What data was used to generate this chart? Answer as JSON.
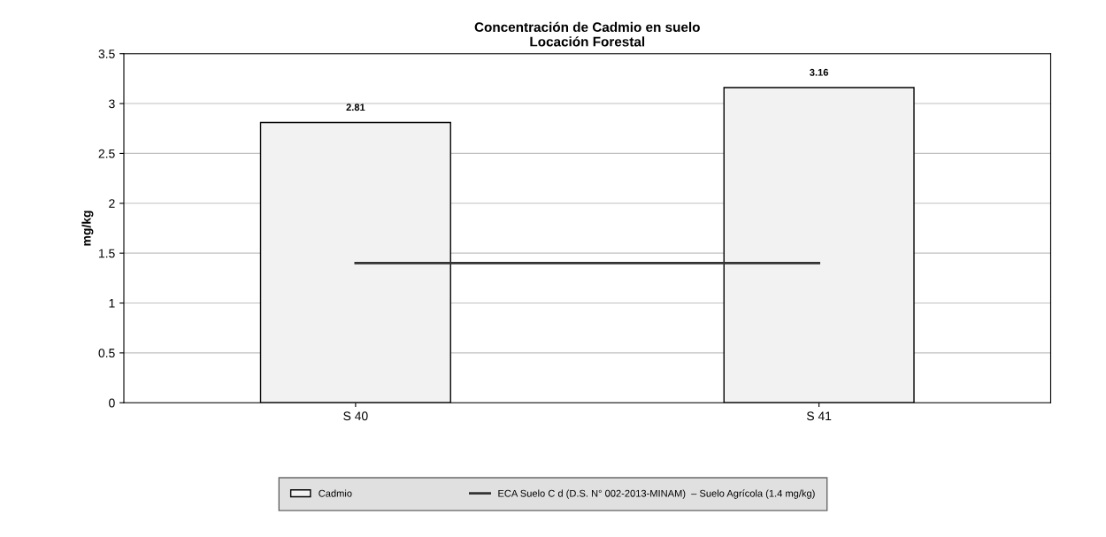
{
  "chart_data": {
    "type": "bar",
    "title": "Concentración de Cadmio en suelo\nLocación Forestal",
    "ylabel": "mg/kg",
    "categories": [
      "S 40",
      "S 41"
    ],
    "series": [
      {
        "name": "Cadmio",
        "color": "#f2f2f2",
        "values": [
          2.81,
          3.16
        ],
        "value_labels": [
          "2.81",
          "3.16"
        ]
      },
      {
        "name": "ECA Suelo C d (D.S. N° 002-2013-MINAM)  – Suelo Agrícola (1.4 mg/kg)",
        "type": "line",
        "color": "#333333",
        "values": [
          1.4,
          1.4
        ]
      }
    ],
    "ylim": [
      0,
      3.5
    ],
    "yticks": [
      0,
      0.5,
      1,
      1.5,
      2,
      2.5,
      3,
      3.5
    ],
    "grid": "y",
    "legend": "bottom",
    "marker": "none",
    "line_style": "solid"
  }
}
